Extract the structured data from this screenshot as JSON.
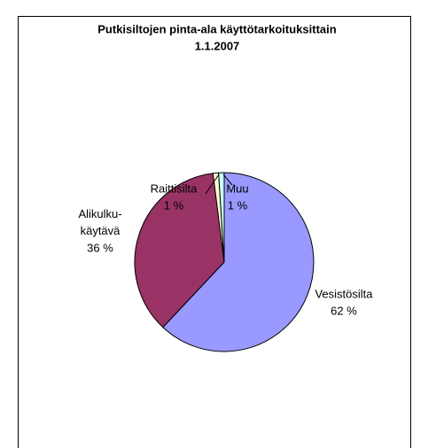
{
  "chart_data": {
    "type": "pie",
    "title": "Putkisiltojen pinta-ala käyttötarkoituksittain",
    "subtitle": "1.1.2007",
    "categories": [
      "Vesistösilta",
      "Alikulku-käytävä",
      "Raittisilta",
      "Muu"
    ],
    "values": [
      62,
      36,
      1,
      1
    ],
    "value_labels": [
      "62 %",
      "36 %",
      "1 %",
      "1 %"
    ],
    "colors": [
      "#9999ff",
      "#993366",
      "#ffffcc",
      "#ccffff"
    ]
  }
}
